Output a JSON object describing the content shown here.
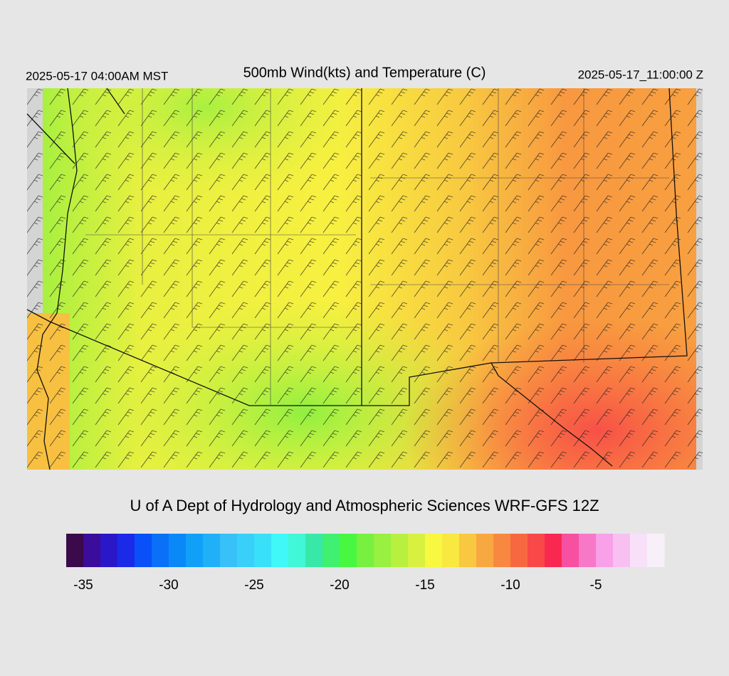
{
  "header": {
    "left": "2025-05-17 04:00AM MST",
    "title": "500mb Wind(kts) and Temperature (C)",
    "right": "2025-05-17_11:00:00 Z"
  },
  "footer": "U of A Dept of Hydrology and Atmospheric Sciences WRF-GFS 12Z",
  "colorbar": {
    "colors": [
      "#3a0a4a",
      "#3c0c9a",
      "#2a18c8",
      "#1a2ae8",
      "#0a50f8",
      "#0a70f8",
      "#0a88f8",
      "#10a0f8",
      "#20b0f8",
      "#38c0f8",
      "#38d0f8",
      "#38e0f8",
      "#40f8f8",
      "#40f8d8",
      "#38e8a8",
      "#40f070",
      "#48f840",
      "#78f040",
      "#98f040",
      "#b8f040",
      "#d8f040",
      "#f8f840",
      "#f8e840",
      "#f8c840",
      "#f8a840",
      "#f88840",
      "#f86840",
      "#f84848",
      "#f82850",
      "#f850a0",
      "#f878c8",
      "#f8a0e8",
      "#f8c0f0",
      "#f8e0f8",
      "#f8f0f8"
    ],
    "lim": [
      -36,
      -1
    ],
    "ticks": [
      -35,
      -30,
      -25,
      -20,
      -15,
      -10,
      -5
    ]
  }
}
